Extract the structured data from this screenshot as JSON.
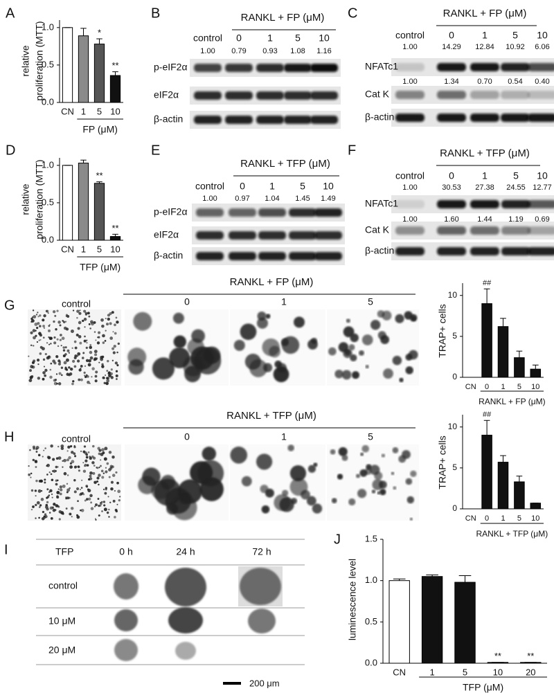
{
  "chart_data": [
    {
      "type": "bar",
      "panel": "A",
      "y_label": [
        "relative",
        "proliferation (MTT)"
      ],
      "categories": [
        "CN",
        "1",
        "5",
        "10"
      ],
      "group_label": "FP (μM)",
      "values": [
        1.0,
        0.89,
        0.78,
        0.36
      ],
      "errors": [
        0,
        0.1,
        0.07,
        0.05
      ],
      "significance": [
        null,
        null,
        "*",
        "**"
      ],
      "colors": [
        "#ffffff",
        "#8a8a8a",
        "#555555",
        "#111111"
      ],
      "ylim": [
        0,
        1.1
      ],
      "yticks": [
        {
          "value": 0,
          "label": "0.0"
        },
        {
          "value": 0.5,
          "label": "0.5"
        },
        {
          "value": 1,
          "label": "1.0"
        }
      ]
    },
    {
      "type": "bar",
      "panel": "D",
      "y_label": [
        "relative",
        "proliferation (MTT)"
      ],
      "categories": [
        "CN",
        "1",
        "5",
        "10"
      ],
      "group_label": "TFP (μM)",
      "values": [
        1.0,
        1.03,
        0.76,
        0.05
      ],
      "errors": [
        0,
        0.04,
        0.02,
        0.03
      ],
      "significance": [
        null,
        null,
        "**",
        "**"
      ],
      "colors": [
        "#ffffff",
        "#8a8a8a",
        "#555555",
        "#111111"
      ],
      "ylim": [
        0,
        1.1
      ],
      "yticks": [
        {
          "value": 0,
          "label": "0.0"
        },
        {
          "value": 0.5,
          "label": "0.5"
        },
        {
          "value": 1,
          "label": "1.0"
        }
      ]
    },
    {
      "type": "bar",
      "panel": "G",
      "y_label": [
        "TRAP+ cells"
      ],
      "categories": [
        "CN",
        "0",
        "1",
        "5",
        "10"
      ],
      "group_label": "RANKL + FP (μM)",
      "values": [
        0,
        9.0,
        6.2,
        2.4,
        1.0
      ],
      "errors": [
        0,
        1.8,
        1.0,
        0.8,
        0.5
      ],
      "significance": [
        null,
        "##",
        null,
        null,
        null
      ],
      "colors": [
        "#111111",
        "#111111",
        "#111111",
        "#111111",
        "#111111"
      ],
      "ylim": [
        0,
        11.5
      ],
      "yticks": [
        0,
        5,
        10
      ]
    },
    {
      "type": "bar",
      "panel": "H",
      "y_label": [
        "TRAP+ cells"
      ],
      "categories": [
        "CN",
        "0",
        "1",
        "5",
        "10"
      ],
      "group_label": "RANKL + TFP (μM)",
      "values": [
        0,
        9.0,
        5.7,
        3.3,
        0.7
      ],
      "errors": [
        0,
        1.8,
        0.8,
        0.7,
        0
      ],
      "significance": [
        null,
        "##",
        null,
        null,
        null
      ],
      "colors": [
        "#111111",
        "#111111",
        "#111111",
        "#111111",
        "#111111"
      ],
      "ylim": [
        0,
        11.5
      ],
      "yticks": [
        0,
        5,
        10
      ]
    },
    {
      "type": "bar",
      "panel": "J",
      "y_label": [
        "luminescence level"
      ],
      "categories": [
        "CN",
        "1",
        "5",
        "10",
        "20"
      ],
      "group_label": "TFP (μM)",
      "values": [
        1.0,
        1.05,
        0.98,
        0.01,
        0.01
      ],
      "errors": [
        0.02,
        0.02,
        0.08,
        0,
        0
      ],
      "significance": [
        null,
        null,
        null,
        "**",
        "**"
      ],
      "colors": [
        "#ffffff",
        "#111111",
        "#111111",
        "#111111",
        "#111111"
      ],
      "ylim": [
        0,
        1.5
      ],
      "yticks": [
        {
          "value": 0,
          "label": "0.0"
        },
        {
          "value": 0.5,
          "label": "0.5"
        },
        {
          "value": 1,
          "label": "1.0"
        },
        {
          "value": 1.5,
          "label": "1.5"
        }
      ]
    }
  ],
  "blots": [
    {
      "panel": "B",
      "title": "RANKL + FP (μM)",
      "columns": [
        "control",
        "0",
        "1",
        "5",
        "10"
      ],
      "rows": [
        {
          "name": "p-eIF2α",
          "quant": [
            "1.00",
            "0.79",
            "0.93",
            "1.08",
            "1.16"
          ]
        },
        {
          "name": "eIF2α"
        },
        {
          "name": "β-actin"
        }
      ]
    },
    {
      "panel": "C",
      "title": "RANKL + FP (μM)",
      "columns": [
        "control",
        "0",
        "1",
        "5",
        "10"
      ],
      "rows": [
        {
          "name": "NFATc1",
          "quant": [
            "1.00",
            "14.29",
            "12.84",
            "10.92",
            "6.06"
          ]
        },
        {
          "name": "Cat K",
          "quant": [
            "1.00",
            "1.34",
            "0.70",
            "0.54",
            "0.40"
          ]
        },
        {
          "name": "β-actin"
        }
      ]
    },
    {
      "panel": "E",
      "title": "RANKL + TFP (μM)",
      "columns": [
        "control",
        "0",
        "1",
        "5",
        "10"
      ],
      "rows": [
        {
          "name": "p-eIF2α",
          "quant": [
            "1.00",
            "0.97",
            "1.04",
            "1.45",
            "1.49"
          ]
        },
        {
          "name": "eIF2α"
        },
        {
          "name": "β-actin"
        }
      ]
    },
    {
      "panel": "F",
      "title": "RANKL + TFP (μM)",
      "columns": [
        "control",
        "0",
        "1",
        "5",
        "10"
      ],
      "rows": [
        {
          "name": "NFATc1",
          "quant": [
            "1.00",
            "30.53",
            "27.38",
            "24.55",
            "12.77"
          ]
        },
        {
          "name": "Cat K",
          "quant": [
            "1.00",
            "1.60",
            "1.44",
            "1.19",
            "0.69"
          ]
        },
        {
          "name": "β-actin"
        }
      ]
    }
  ],
  "micrographs": [
    {
      "panel": "G",
      "title": "RANKL + FP (μM)",
      "columns": [
        "control",
        "0",
        "1",
        "5"
      ]
    },
    {
      "panel": "H",
      "title": "RANKL + TFP (μM)",
      "columns": [
        "control",
        "0",
        "1",
        "5"
      ]
    }
  ],
  "table": {
    "panel": "I",
    "header": [
      "TFP",
      "0 h",
      "24 h",
      "72 h"
    ],
    "rows": [
      "control",
      "10 μM",
      "20 μM"
    ],
    "scale_bar": "200 μm"
  }
}
